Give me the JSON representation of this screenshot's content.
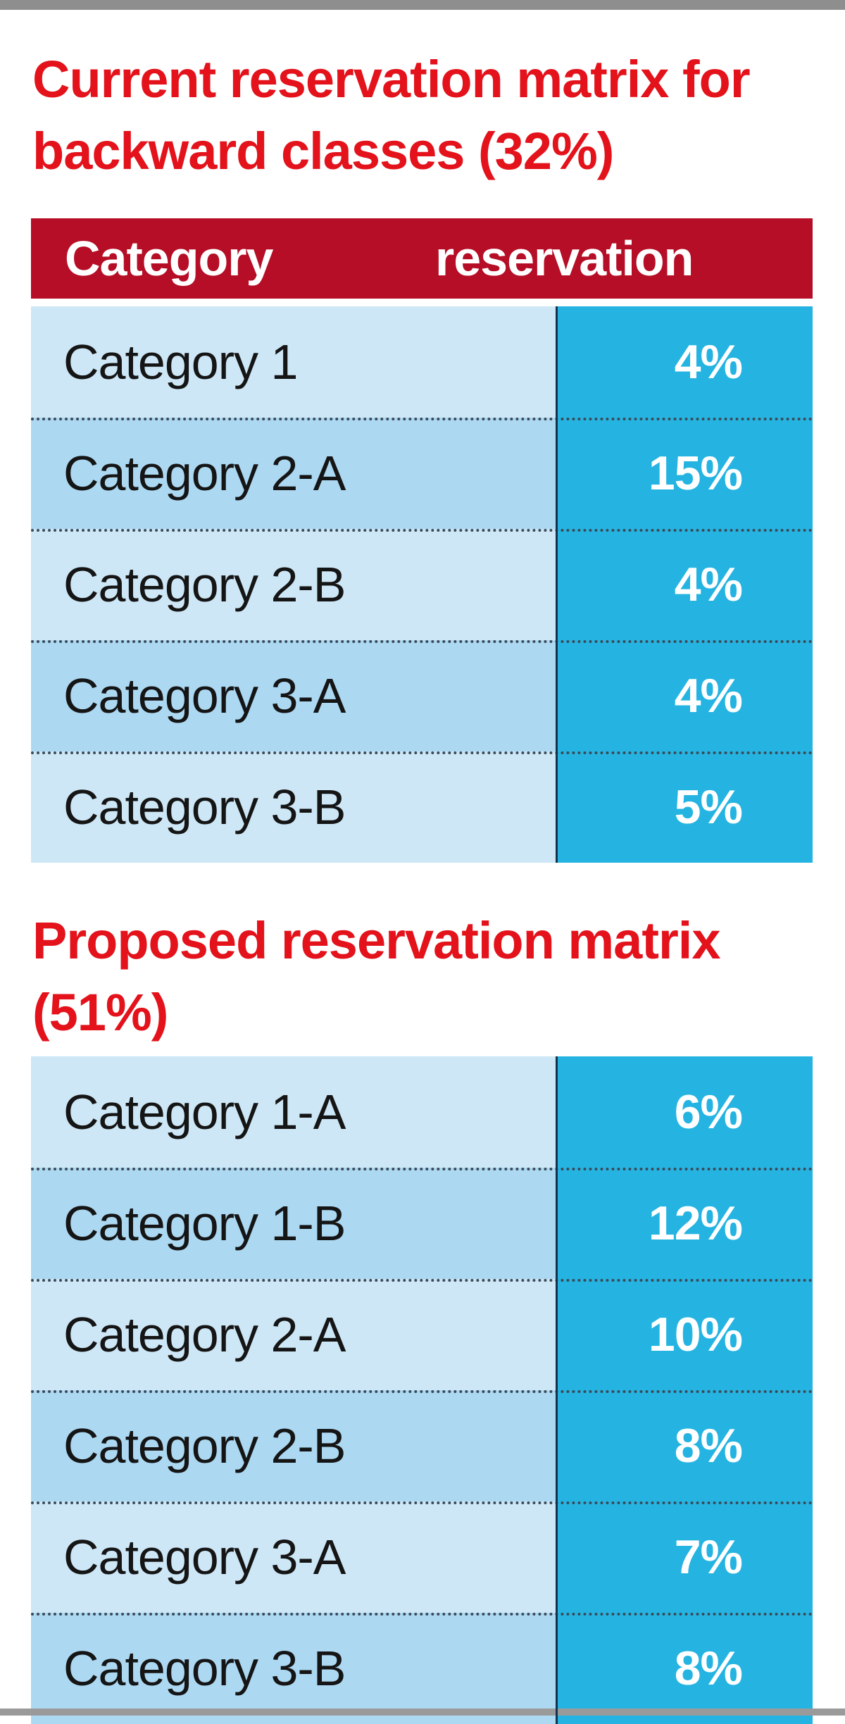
{
  "chart_data": {
    "type": "table",
    "tables": [
      {
        "title": "Current reservation matrix for backward classes (32%)",
        "columns": [
          "Category",
          "reservation"
        ],
        "rows": [
          {
            "category": "Category 1",
            "reservation": "4%"
          },
          {
            "category": "Category 2-A",
            "reservation": "15%"
          },
          {
            "category": "Category 2-B",
            "reservation": "4%"
          },
          {
            "category": "Category 3-A",
            "reservation": "4%"
          },
          {
            "category": "Category 3-B",
            "reservation": "5%"
          }
        ]
      },
      {
        "title": "Proposed reservation matrix (51%)",
        "rows": [
          {
            "category": "Category 1-A",
            "reservation": "6%"
          },
          {
            "category": "Category 1-B",
            "reservation": "12%"
          },
          {
            "category": "Category 2-A",
            "reservation": "10%"
          },
          {
            "category": "Category 2-B",
            "reservation": "8%"
          },
          {
            "category": "Category 3-A",
            "reservation": "7%"
          },
          {
            "category": "Category 3-B",
            "reservation": "8%"
          }
        ]
      }
    ]
  },
  "colors": {
    "heading": "#e3121b",
    "header_bar": "#b50e26",
    "label_light": "#cde7f6",
    "label_mid": "#acd8f2",
    "value_cell": "#25b4e2"
  }
}
